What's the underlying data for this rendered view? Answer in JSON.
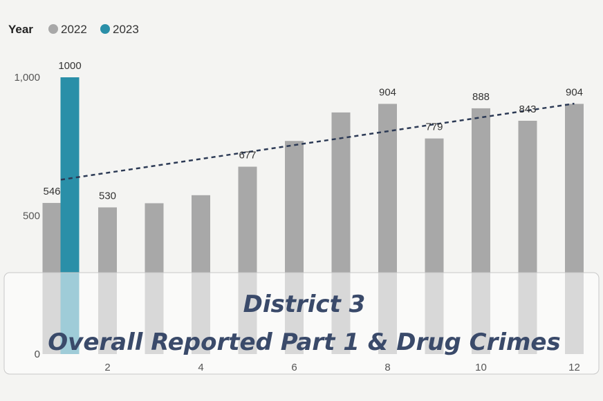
{
  "chart_data": {
    "type": "bar",
    "legend": {
      "title": "Year",
      "position": "top-left",
      "entries": [
        "2022",
        "2023"
      ]
    },
    "x": [
      1,
      2,
      3,
      4,
      5,
      6,
      7,
      8,
      9,
      10,
      11,
      12
    ],
    "x_ticks": [
      "2",
      "4",
      "6",
      "8",
      "10",
      "12"
    ],
    "y_ticks": [
      "0",
      "500",
      "1,000"
    ],
    "ylim": [
      0,
      1000
    ],
    "series": [
      {
        "name": "2022",
        "color": "#a8a8a8",
        "values": [
          546,
          530,
          545,
          574,
          677,
          770,
          873,
          904,
          779,
          888,
          843,
          904
        ],
        "labels": [
          "546",
          "530",
          "",
          "",
          "677",
          "",
          "",
          "904",
          "779",
          "888",
          "843",
          "904"
        ]
      },
      {
        "name": "2023",
        "color": "#2a8fa8",
        "values": [
          1000,
          null,
          null,
          null,
          null,
          null,
          null,
          null,
          null,
          null,
          null,
          null
        ],
        "labels": [
          "1000",
          "",
          "",
          "",
          "",
          "",
          "",
          "",
          "",
          "",
          "",
          ""
        ]
      }
    ],
    "trendline": {
      "series": "2022",
      "style": "dashed",
      "color": "#2c3a55",
      "start": 630,
      "end": 905
    },
    "overlay_title": [
      "District 3",
      "Overall Reported Part 1 & Drug Crimes"
    ]
  }
}
